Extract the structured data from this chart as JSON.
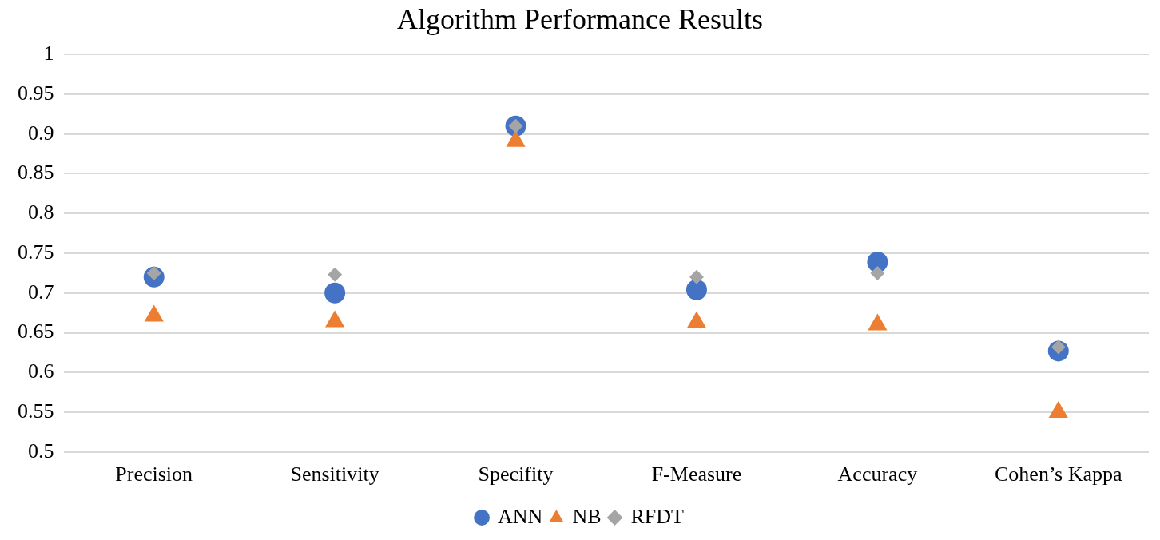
{
  "chart_data": {
    "type": "scatter",
    "title": "Algorithm Performance Results",
    "categories": [
      "Precision",
      "Sensitivity",
      "Specifity",
      "F-Measure",
      "Accuracy",
      "Cohen’s Kappa"
    ],
    "series": [
      {
        "name": "ANN",
        "color": "#4472c4",
        "marker": "circle",
        "values": [
          0.72,
          0.7,
          0.91,
          0.704,
          0.739,
          0.627
        ]
      },
      {
        "name": "NB",
        "color": "#ed7d31",
        "marker": "triangle",
        "values": [
          0.671,
          0.664,
          0.891,
          0.663,
          0.66,
          0.55
        ]
      },
      {
        "name": "RFDT",
        "color": "#a5a5a5",
        "marker": "diamond",
        "values": [
          0.725,
          0.723,
          0.91,
          0.72,
          0.725,
          0.632
        ]
      }
    ],
    "ylim": [
      0.5,
      1
    ],
    "yticks": [
      0.5,
      0.55,
      0.6,
      0.65,
      0.7,
      0.75,
      0.8,
      0.85,
      0.9,
      0.95,
      1
    ],
    "grid": "y",
    "legend": "bottom"
  }
}
